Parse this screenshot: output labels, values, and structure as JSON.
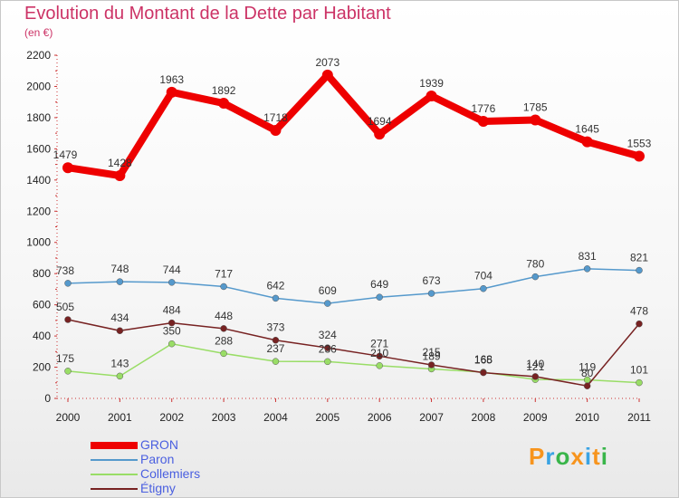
{
  "title": "Evolution du Montant de la Dette par Habitant",
  "subtitle": "(en €)",
  "logo": {
    "text": "Proxiti",
    "colors": [
      "#f7941d",
      "#3aa3e3",
      "#39b54a",
      "#f7941d",
      "#3aa3e3",
      "#f7941d",
      "#39b54a"
    ]
  },
  "chart_data": {
    "type": "line",
    "title": "Evolution du Montant de la Dette par Habitant",
    "ylabel": "(en €)",
    "x": [
      "2000",
      "2001",
      "2002",
      "2003",
      "2004",
      "2005",
      "2006",
      "2007",
      "2008",
      "2009",
      "2010",
      "2011"
    ],
    "ylim": [
      0,
      2200
    ],
    "yticks": [
      0,
      200,
      400,
      600,
      800,
      1000,
      1200,
      1400,
      1600,
      1800,
      2000,
      2200
    ],
    "legend_position": "bottom-left",
    "series": [
      {
        "name": "GRON",
        "color": "#ee0000",
        "values": [
          1479,
          1428,
          1963,
          1892,
          1718,
          2073,
          1694,
          1939,
          1776,
          1785,
          1645,
          1553
        ]
      },
      {
        "name": "Paron",
        "color": "#5599cc",
        "values": [
          738,
          748,
          744,
          717,
          642,
          609,
          649,
          673,
          704,
          780,
          831,
          821
        ]
      },
      {
        "name": "Collemiers",
        "color": "#99dd66",
        "values": [
          175,
          143,
          350,
          288,
          237,
          236,
          210,
          189,
          168,
          121,
          119,
          101
        ]
      },
      {
        "name": "Étigny",
        "color": "#772222",
        "values": [
          505,
          434,
          484,
          448,
          373,
          324,
          271,
          215,
          165,
          140,
          80,
          478
        ]
      }
    ]
  }
}
